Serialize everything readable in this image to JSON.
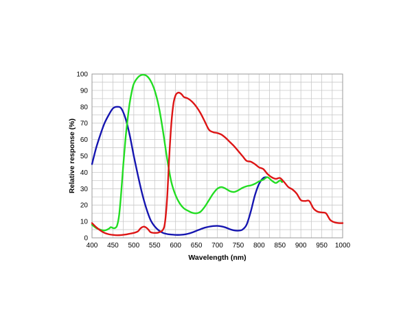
{
  "chart_data": {
    "type": "line",
    "title": "",
    "xlabel": "Wavelength (nm)",
    "ylabel": "Relative response (%)",
    "xlim": [
      400,
      1000
    ],
    "ylim": [
      0,
      100
    ],
    "xticks": [
      400,
      450,
      500,
      550,
      600,
      650,
      700,
      750,
      800,
      850,
      900,
      950,
      1000
    ],
    "yticks": [
      0,
      10,
      20,
      30,
      40,
      50,
      60,
      70,
      80,
      90,
      100
    ],
    "grid": true,
    "legend": "none",
    "series": [
      {
        "color": "#1515b0",
        "points": [
          [
            400,
            45
          ],
          [
            410,
            55
          ],
          [
            420,
            63
          ],
          [
            430,
            70
          ],
          [
            440,
            75
          ],
          [
            450,
            79
          ],
          [
            460,
            80
          ],
          [
            470,
            79
          ],
          [
            480,
            73
          ],
          [
            490,
            63
          ],
          [
            500,
            50
          ],
          [
            510,
            38
          ],
          [
            520,
            27
          ],
          [
            530,
            18
          ],
          [
            540,
            11
          ],
          [
            550,
            7
          ],
          [
            560,
            4.5
          ],
          [
            570,
            3
          ],
          [
            580,
            2.3
          ],
          [
            590,
            2
          ],
          [
            600,
            1.8
          ],
          [
            610,
            1.8
          ],
          [
            620,
            2
          ],
          [
            630,
            2.5
          ],
          [
            640,
            3.3
          ],
          [
            650,
            4.3
          ],
          [
            660,
            5.3
          ],
          [
            670,
            6.2
          ],
          [
            680,
            6.8
          ],
          [
            690,
            7.2
          ],
          [
            700,
            7.3
          ],
          [
            710,
            7
          ],
          [
            720,
            6.3
          ],
          [
            730,
            5.3
          ],
          [
            740,
            4.6
          ],
          [
            750,
            4.4
          ],
          [
            760,
            5
          ],
          [
            770,
            8
          ],
          [
            780,
            16
          ],
          [
            790,
            26
          ],
          [
            800,
            33
          ],
          [
            810,
            36.5
          ],
          [
            818,
            37
          ]
        ]
      },
      {
        "color": "#22dd22",
        "points": [
          [
            400,
            8
          ],
          [
            410,
            6
          ],
          [
            420,
            5
          ],
          [
            430,
            4.5
          ],
          [
            440,
            5.5
          ],
          [
            445,
            6.5
          ],
          [
            450,
            6
          ],
          [
            455,
            6
          ],
          [
            460,
            7.5
          ],
          [
            465,
            14
          ],
          [
            470,
            28
          ],
          [
            475,
            45
          ],
          [
            480,
            60
          ],
          [
            485,
            72
          ],
          [
            490,
            82
          ],
          [
            495,
            89
          ],
          [
            500,
            94
          ],
          [
            510,
            98
          ],
          [
            520,
            99.5
          ],
          [
            530,
            99
          ],
          [
            540,
            96
          ],
          [
            550,
            90
          ],
          [
            560,
            80
          ],
          [
            570,
            65
          ],
          [
            580,
            48
          ],
          [
            590,
            34
          ],
          [
            600,
            26
          ],
          [
            610,
            21
          ],
          [
            620,
            18
          ],
          [
            630,
            16.5
          ],
          [
            640,
            15.3
          ],
          [
            650,
            15
          ],
          [
            660,
            16
          ],
          [
            670,
            19
          ],
          [
            680,
            23
          ],
          [
            690,
            27
          ],
          [
            700,
            30
          ],
          [
            710,
            31
          ],
          [
            720,
            30
          ],
          [
            730,
            28.5
          ],
          [
            740,
            28
          ],
          [
            750,
            29
          ],
          [
            760,
            30.5
          ],
          [
            770,
            31.5
          ],
          [
            780,
            32
          ],
          [
            790,
            33
          ],
          [
            800,
            34.5
          ],
          [
            810,
            35.5
          ],
          [
            820,
            37
          ],
          [
            830,
            35
          ],
          [
            840,
            33.5
          ],
          [
            850,
            35
          ],
          [
            855,
            34
          ]
        ]
      },
      {
        "color": "#dd1515",
        "points": [
          [
            400,
            9
          ],
          [
            410,
            6.5
          ],
          [
            420,
            4.5
          ],
          [
            430,
            3
          ],
          [
            440,
            2.2
          ],
          [
            450,
            1.8
          ],
          [
            460,
            1.6
          ],
          [
            470,
            1.7
          ],
          [
            480,
            2
          ],
          [
            490,
            2.5
          ],
          [
            500,
            3
          ],
          [
            510,
            4
          ],
          [
            515,
            5.5
          ],
          [
            520,
            6.5
          ],
          [
            525,
            6.8
          ],
          [
            530,
            6.2
          ],
          [
            535,
            5
          ],
          [
            540,
            3.5
          ],
          [
            550,
            3
          ],
          [
            560,
            3.3
          ],
          [
            570,
            5
          ],
          [
            575,
            10
          ],
          [
            580,
            25
          ],
          [
            585,
            50
          ],
          [
            590,
            70
          ],
          [
            595,
            82
          ],
          [
            600,
            87
          ],
          [
            605,
            88.5
          ],
          [
            610,
            88.5
          ],
          [
            615,
            87.5
          ],
          [
            620,
            86
          ],
          [
            630,
            85
          ],
          [
            640,
            83
          ],
          [
            650,
            80
          ],
          [
            660,
            76
          ],
          [
            670,
            71
          ],
          [
            680,
            66
          ],
          [
            690,
            64.5
          ],
          [
            700,
            64
          ],
          [
            710,
            63
          ],
          [
            720,
            61
          ],
          [
            730,
            58.5
          ],
          [
            740,
            56
          ],
          [
            750,
            53
          ],
          [
            760,
            50
          ],
          [
            770,
            47
          ],
          [
            780,
            46.5
          ],
          [
            790,
            45
          ],
          [
            800,
            43
          ],
          [
            810,
            42
          ],
          [
            820,
            39
          ],
          [
            830,
            37
          ],
          [
            840,
            36
          ],
          [
            850,
            36.5
          ],
          [
            860,
            34
          ],
          [
            870,
            31
          ],
          [
            880,
            29.5
          ],
          [
            890,
            27
          ],
          [
            900,
            23
          ],
          [
            910,
            22.5
          ],
          [
            920,
            22.5
          ],
          [
            930,
            18
          ],
          [
            940,
            16
          ],
          [
            950,
            15.5
          ],
          [
            960,
            15
          ],
          [
            970,
            11
          ],
          [
            980,
            9.5
          ],
          [
            990,
            9
          ],
          [
            1000,
            9
          ]
        ]
      }
    ]
  }
}
